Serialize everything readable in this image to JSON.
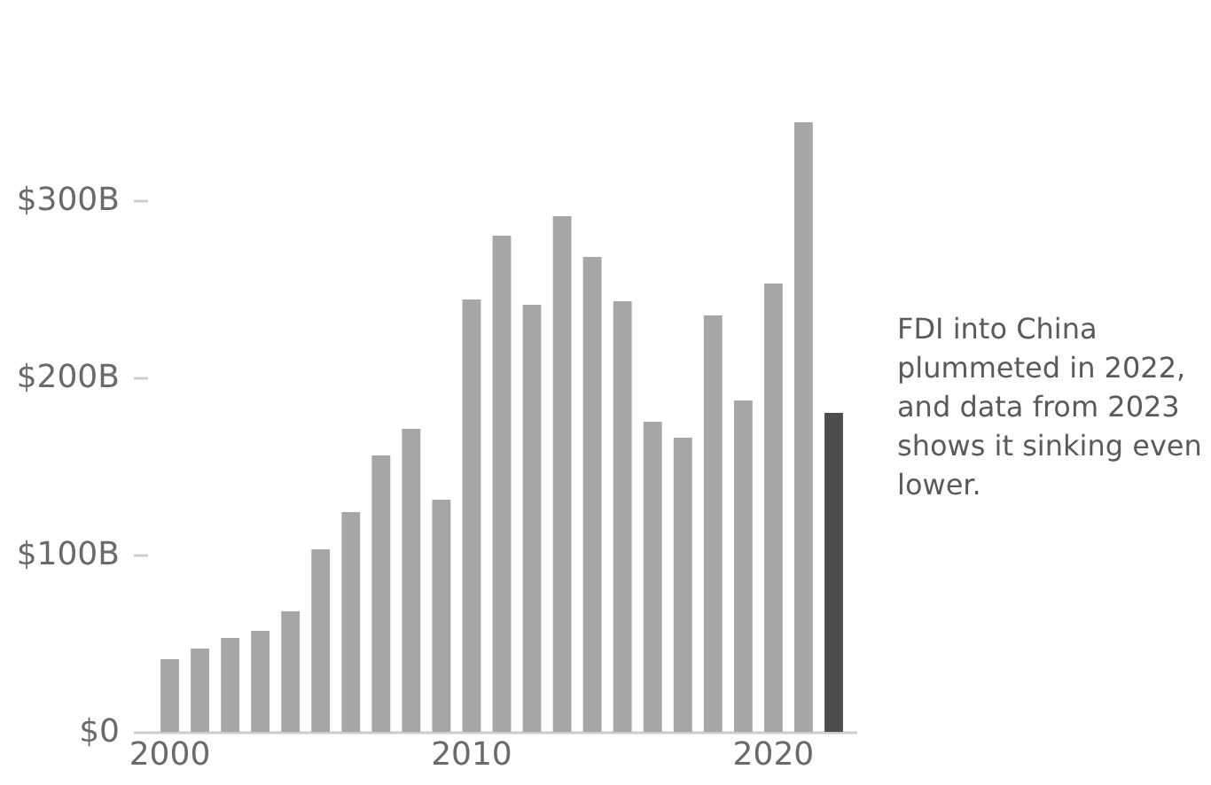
{
  "chart_data": {
    "type": "bar",
    "categories": [
      "2000",
      null,
      null,
      null,
      null,
      null,
      null,
      null,
      null,
      null,
      "2010",
      null,
      null,
      null,
      null,
      null,
      null,
      null,
      null,
      null,
      "2020",
      null,
      null
    ],
    "values": [
      41,
      47,
      53,
      57,
      68,
      103,
      124,
      156,
      171,
      131,
      244,
      280,
      241,
      291,
      268,
      243,
      175,
      166,
      235,
      187,
      253,
      344,
      180
    ],
    "colors": [
      "#a6a6a6",
      "#a6a6a6",
      "#a6a6a6",
      "#a6a6a6",
      "#a6a6a6",
      "#a6a6a6",
      "#a6a6a6",
      "#a6a6a6",
      "#a6a6a6",
      "#a6a6a6",
      "#a6a6a6",
      "#a6a6a6",
      "#a6a6a6",
      "#a6a6a6",
      "#a6a6a6",
      "#a6a6a6",
      "#a6a6a6",
      "#a6a6a6",
      "#a6a6a6",
      "#a6a6a6",
      "#a6a6a6",
      "#a6a6a6",
      "#4d4d4d"
    ],
    "ylim": [
      0,
      345
    ],
    "yticks": [
      {
        "value": 0,
        "label": "$0"
      },
      {
        "value": 100,
        "label": "$100B"
      },
      {
        "value": 200,
        "label": "$200B"
      },
      {
        "value": 300,
        "label": "$300B"
      }
    ],
    "grid": false,
    "annotations": [
      "FDI into China plummeted in 2022, and data from 2023 shows it sinking even lower."
    ]
  }
}
